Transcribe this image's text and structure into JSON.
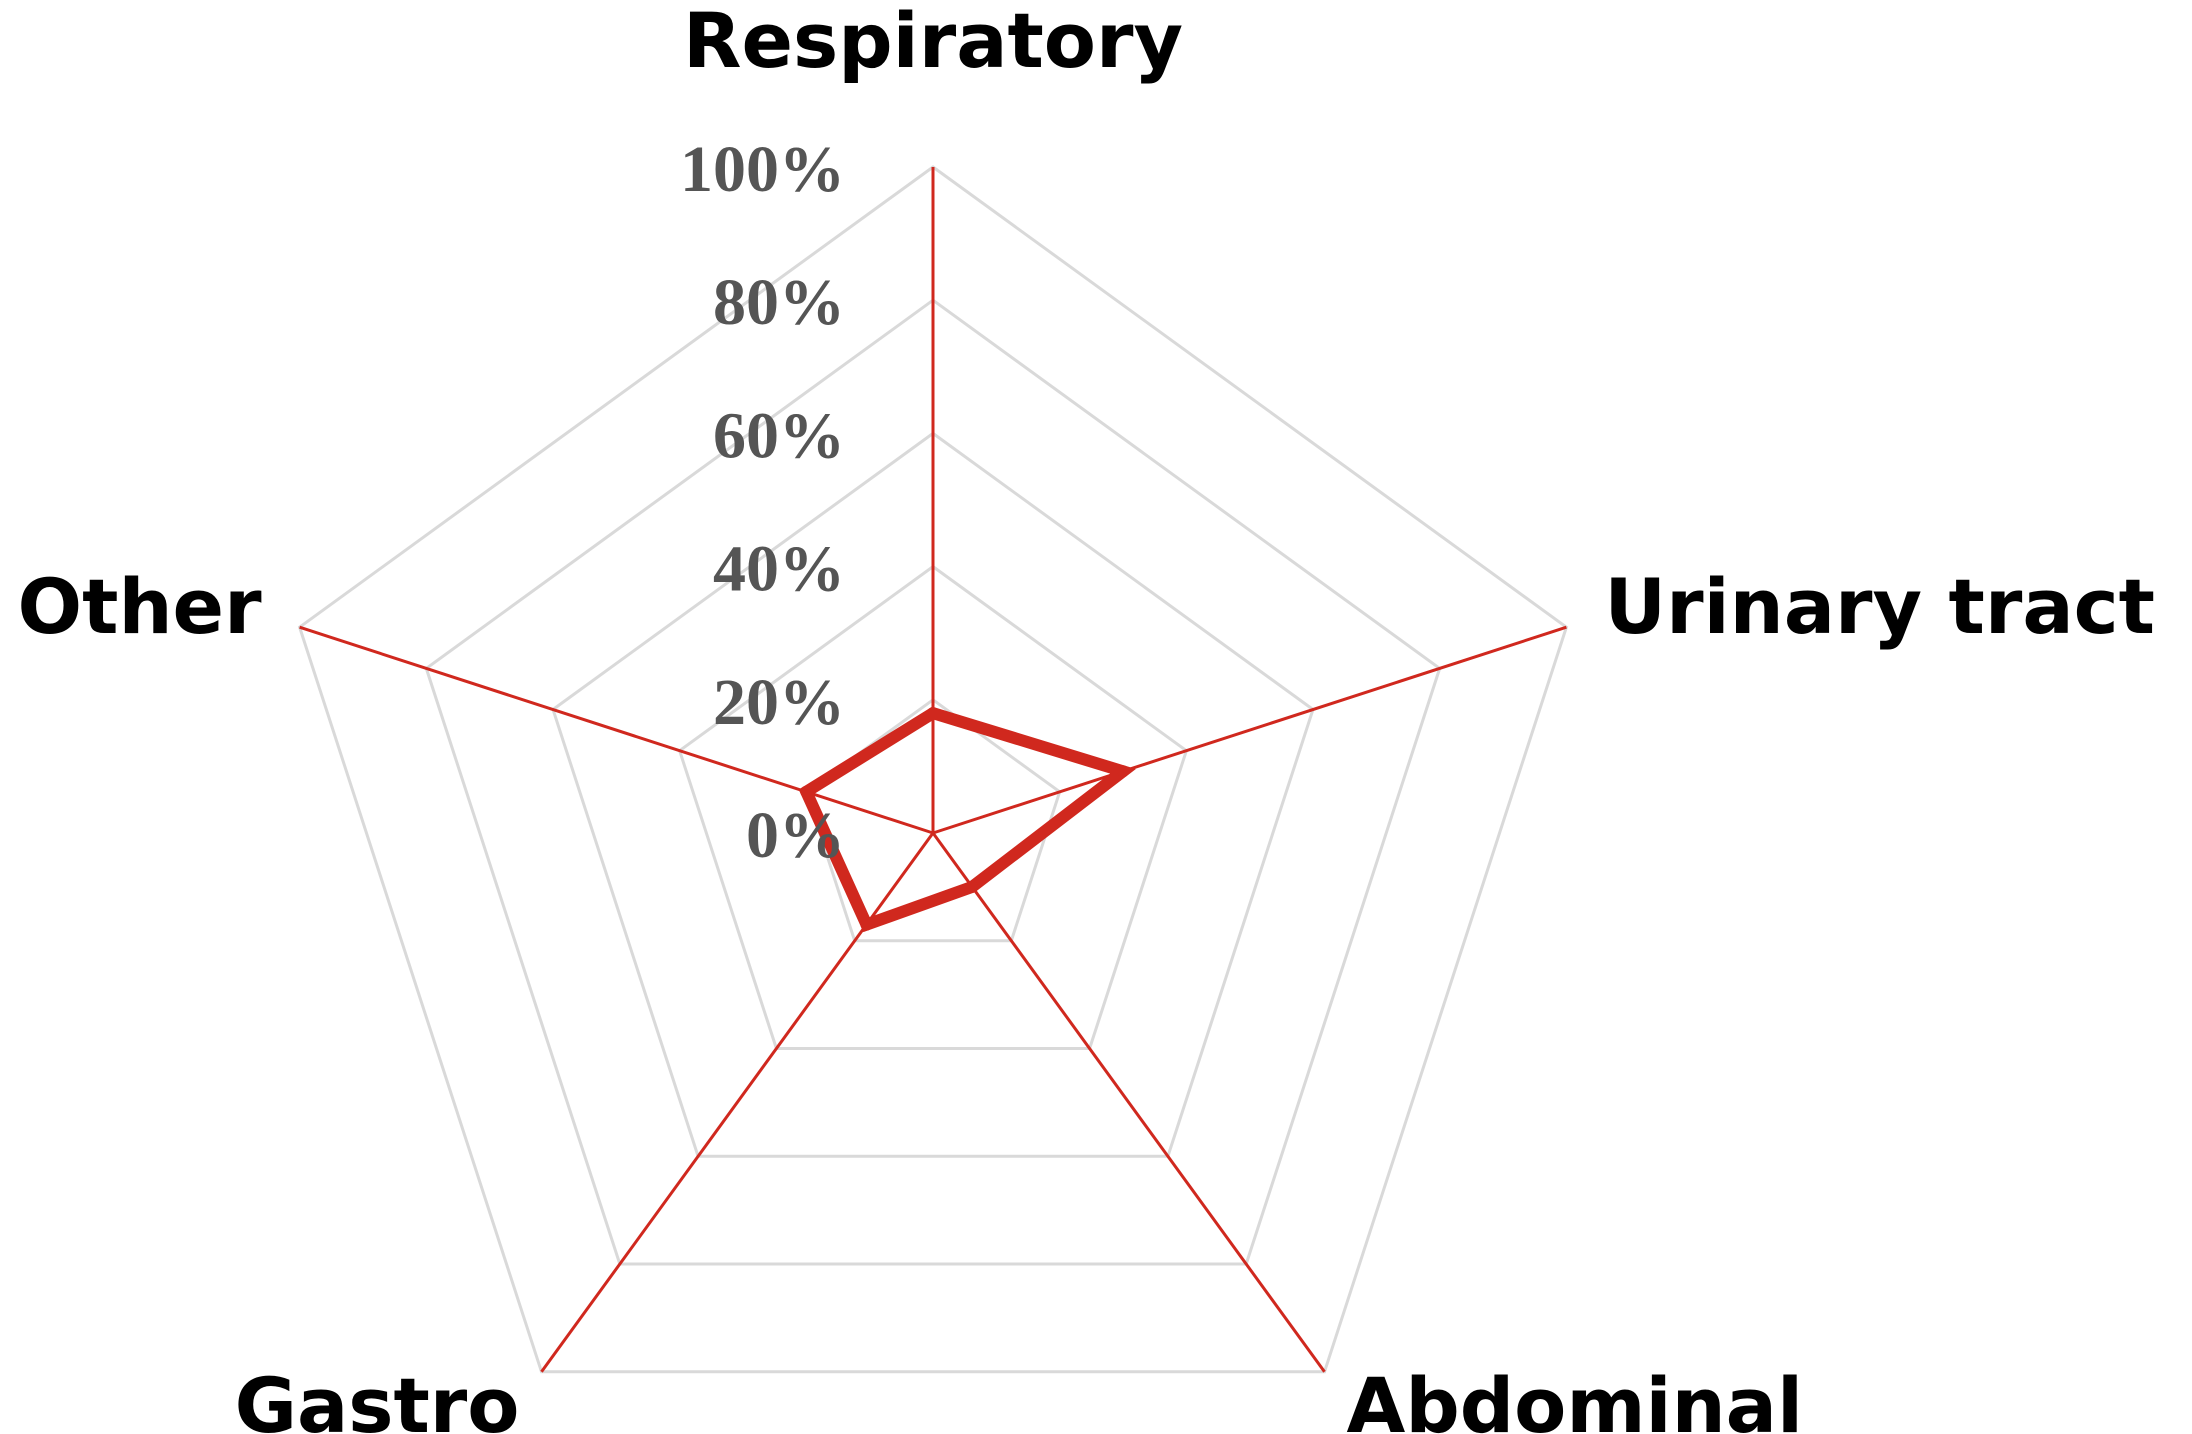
{
  "chart_data": {
    "type": "radar",
    "categories": [
      "Respiratory",
      "Urinary tract",
      "Abdominal",
      "Gastro",
      "Other"
    ],
    "series": [
      {
        "values": [
          18,
          30,
          10,
          17,
          20
        ]
      }
    ],
    "rlim": [
      0,
      100
    ],
    "ticks": [
      "0%",
      "20%",
      "40%",
      "60%",
      "80%",
      "100%"
    ],
    "grid": true,
    "legend": "none",
    "colors": {
      "series": "#d0281e",
      "spokes": "#d0281e",
      "grid": "#d9d9d9",
      "axis_text": "#000000",
      "tick_text": "#555555"
    }
  }
}
